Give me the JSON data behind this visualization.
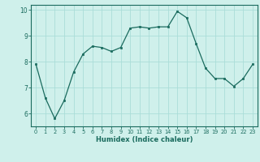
{
  "x": [
    0,
    1,
    2,
    3,
    4,
    5,
    6,
    7,
    8,
    9,
    10,
    11,
    12,
    13,
    14,
    15,
    16,
    17,
    18,
    19,
    20,
    21,
    22,
    23
  ],
  "y": [
    7.9,
    6.6,
    5.8,
    6.5,
    7.6,
    8.3,
    8.6,
    8.55,
    8.4,
    8.55,
    9.3,
    9.35,
    9.3,
    9.35,
    9.35,
    9.95,
    9.7,
    8.7,
    7.75,
    7.35,
    7.35,
    7.05,
    7.35,
    7.9
  ],
  "xlabel": "Humidex (Indice chaleur)",
  "ylim": [
    5.5,
    10.2
  ],
  "xlim": [
    -0.5,
    23.5
  ],
  "line_color": "#1a6b5e",
  "marker_color": "#1a6b5e",
  "bg_color": "#cff0eb",
  "grid_color": "#aaddd8",
  "axis_label_color": "#1a6b5e",
  "tick_color": "#1a6b5e",
  "border_color": "#1a6b5e",
  "yticks": [
    6,
    7,
    8,
    9,
    10
  ],
  "xticks": [
    0,
    1,
    2,
    3,
    4,
    5,
    6,
    7,
    8,
    9,
    10,
    11,
    12,
    13,
    14,
    15,
    16,
    17,
    18,
    19,
    20,
    21,
    22,
    23
  ]
}
